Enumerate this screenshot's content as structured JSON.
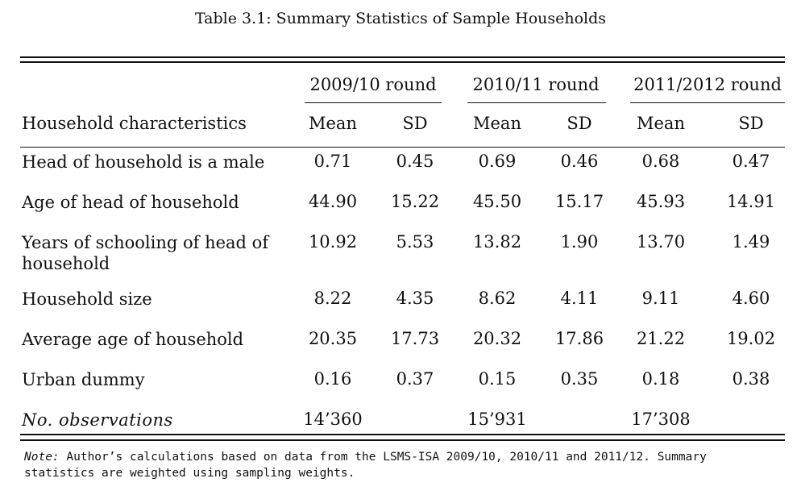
{
  "caption": "Table 3.1: Summary Statistics of Sample Households",
  "table": {
    "rounds": [
      "2009/10 round",
      "2010/11 round",
      "2011/2012 round"
    ],
    "row_header": "Household characteristics",
    "stat_headers": [
      "Mean",
      "SD",
      "Mean",
      "SD",
      "Mean",
      "SD"
    ],
    "rows": [
      {
        "label": "Head of household is a male",
        "values": [
          "0.71",
          "0.45",
          "0.69",
          "0.46",
          "0.68",
          "0.47"
        ]
      },
      {
        "label": "Age of head of household",
        "values": [
          "44.90",
          "15.22",
          "45.50",
          "15.17",
          "45.93",
          "14.91"
        ]
      },
      {
        "label": "Years of schooling of head of household",
        "values": [
          "10.92",
          "5.53",
          "13.82",
          "1.90",
          "13.70",
          "1.49"
        ]
      },
      {
        "label": "Household size",
        "values": [
          "8.22",
          "4.35",
          "8.62",
          "4.11",
          "9.11",
          "4.60"
        ]
      },
      {
        "label": "Average age of household",
        "values": [
          "20.35",
          "17.73",
          "20.32",
          "17.86",
          "21.22",
          "19.02"
        ]
      },
      {
        "label": "Urban dummy",
        "values": [
          "0.16",
          "0.37",
          "0.15",
          "0.35",
          "0.18",
          "0.38"
        ]
      }
    ],
    "observations": {
      "label": "No. observations",
      "values": [
        "14’360",
        "15’931",
        "17’308"
      ]
    }
  },
  "note": {
    "label": "Note:",
    "text": "Author’s calculations based on data from the LSMS-ISA 2009/10, 2010/11 and 2011/12. Summary statistics are weighted using sampling weights."
  }
}
